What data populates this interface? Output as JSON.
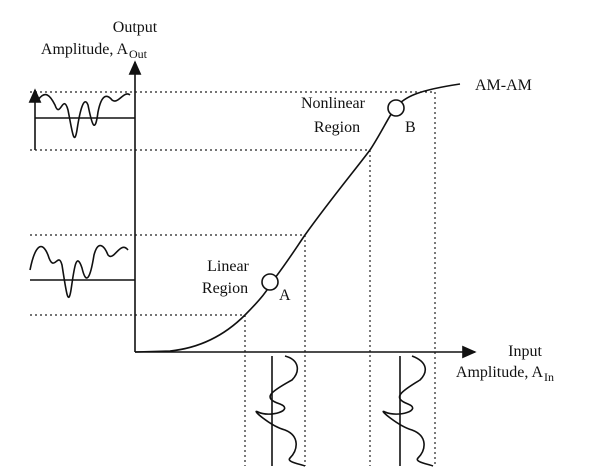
{
  "y_axis_label": {
    "line1": "Output",
    "line2": "Amplitude, A",
    "subscript": "Out"
  },
  "x_axis_label": {
    "line1": "Input",
    "line2": "Amplitude, A",
    "subscript": "In"
  },
  "curve_label": "AM-AM",
  "nonlinear_region": {
    "line1": "Nonlinear",
    "line2": "Region",
    "point": "B"
  },
  "linear_region": {
    "line1": "Linear",
    "line2": "Region",
    "point": "A"
  }
}
